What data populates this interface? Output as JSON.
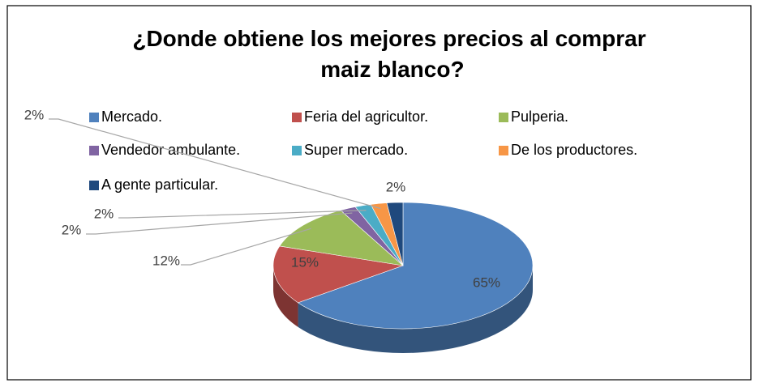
{
  "chart_data": {
    "type": "pie",
    "title": "¿Donde obtiene los mejores precios al comprar maiz blanco?",
    "categories": [
      "Mercado.",
      "Feria del agricultor.",
      "Pulperia.",
      "Vendedor ambulante.",
      "Super mercado.",
      "De los productores.",
      "A gente particular."
    ],
    "values": [
      65,
      15,
      12,
      2,
      2,
      2,
      2
    ],
    "value_labels": [
      "65%",
      "15%",
      "12%",
      "2%",
      "2%",
      "2%",
      "2%"
    ],
    "colors": [
      "#4f81bd",
      "#c0504d",
      "#9bbb59",
      "#8064a2",
      "#4bacc6",
      "#f79646",
      "#1f497d"
    ],
    "legend": "top"
  }
}
